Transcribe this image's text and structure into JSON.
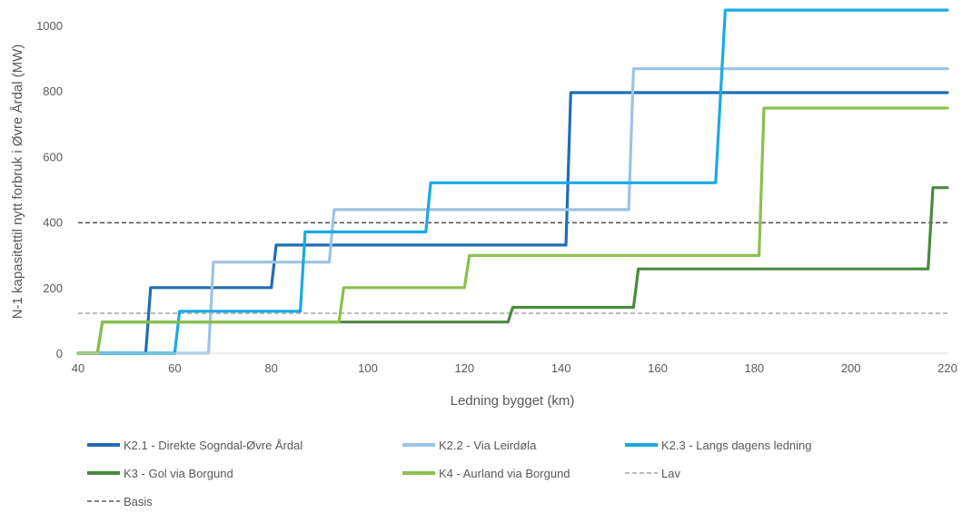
{
  "chart_data": {
    "type": "line",
    "xlabel": "Ledning bygget (km)",
    "ylabel": "N-1 kapasitettil nytt forbruk i Øvre Årdal (MW)",
    "xlim": [
      40,
      220
    ],
    "ylim": [
      0,
      1050
    ],
    "xticks": [
      40,
      60,
      80,
      100,
      120,
      140,
      160,
      180,
      200,
      220
    ],
    "yticks": [
      0,
      200,
      400,
      600,
      800,
      1000
    ],
    "grid": false,
    "legend_position": "bottom",
    "series": [
      {
        "name": "K2.1 - Direkte Sogndal-Øvre Årdal",
        "color": "#1f6eb4",
        "style": "solid",
        "points": [
          [
            40,
            0
          ],
          [
            54,
            0
          ],
          [
            55,
            200
          ],
          [
            80,
            200
          ],
          [
            81,
            330
          ],
          [
            141,
            330
          ],
          [
            142,
            795
          ],
          [
            220,
            795
          ]
        ]
      },
      {
        "name": "K2.2 - Via Leirdøla",
        "color": "#9dc3e6",
        "style": "solid",
        "points": [
          [
            40,
            0
          ],
          [
            67,
            0
          ],
          [
            68,
            278
          ],
          [
            92,
            278
          ],
          [
            93,
            438
          ],
          [
            154,
            438
          ],
          [
            155,
            868
          ],
          [
            220,
            868
          ]
        ]
      },
      {
        "name": "K2.3 - Langs dagens ledning",
        "color": "#1aaae2",
        "style": "solid",
        "points": [
          [
            40,
            0
          ],
          [
            60,
            0
          ],
          [
            61,
            128
          ],
          [
            86,
            128
          ],
          [
            87,
            370
          ],
          [
            112,
            370
          ],
          [
            113,
            520
          ],
          [
            172,
            520
          ],
          [
            174,
            1047
          ],
          [
            220,
            1047
          ]
        ]
      },
      {
        "name": "K3 - Gol via Borgund",
        "color": "#4a8a3f",
        "style": "solid",
        "points": [
          [
            40,
            0
          ],
          [
            44,
            0
          ],
          [
            45,
            95
          ],
          [
            129,
            95
          ],
          [
            130,
            140
          ],
          [
            155,
            140
          ],
          [
            156,
            257
          ],
          [
            216,
            257
          ],
          [
            217,
            505
          ],
          [
            220,
            505
          ]
        ]
      },
      {
        "name": "K4 - Aurland via Borgund",
        "color": "#8cc04d",
        "style": "solid",
        "points": [
          [
            40,
            0
          ],
          [
            44,
            0
          ],
          [
            45,
            95
          ],
          [
            94,
            95
          ],
          [
            95,
            200
          ],
          [
            120,
            200
          ],
          [
            121,
            298
          ],
          [
            181,
            298
          ],
          [
            182,
            748
          ],
          [
            220,
            748
          ]
        ]
      },
      {
        "name": "Lav",
        "color": "#a6a6a6",
        "style": "dashed",
        "points": [
          [
            40,
            122
          ],
          [
            220,
            122
          ]
        ]
      },
      {
        "name": "Basis",
        "color": "#595959",
        "style": "dashed",
        "points": [
          [
            40,
            398
          ],
          [
            220,
            398
          ]
        ]
      }
    ]
  }
}
